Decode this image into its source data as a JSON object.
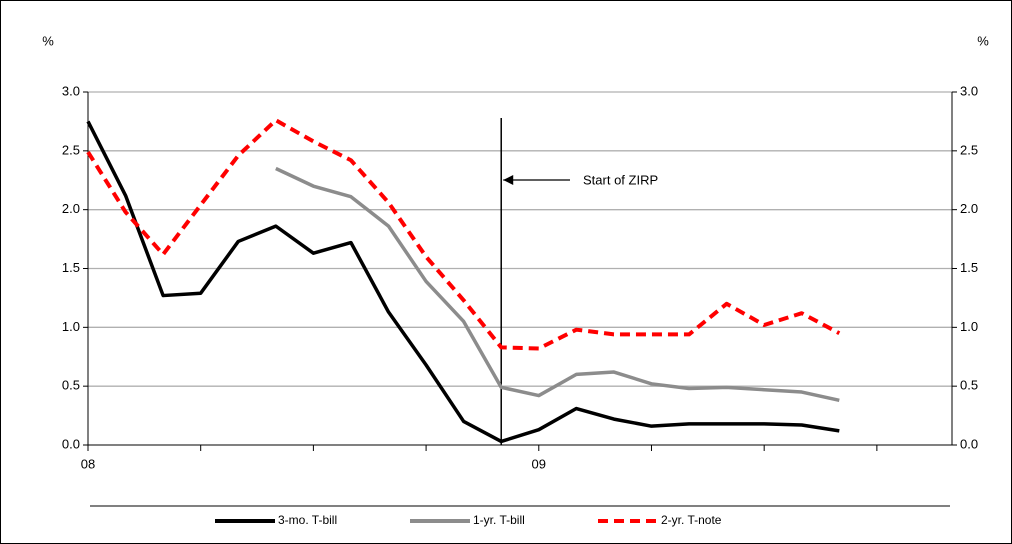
{
  "chart_data": {
    "type": "line",
    "y_label": "%",
    "y2_label": "%",
    "annotation": "Start of ZIRP",
    "categories": [
      "08",
      null,
      null,
      null,
      null,
      null,
      null,
      null,
      null,
      null,
      null,
      null,
      "09",
      null,
      null,
      null,
      null,
      null,
      null,
      null,
      null,
      null,
      null,
      null
    ],
    "series": [
      {
        "name": "3-mo. T-bill",
        "color": "#000000",
        "dash": false,
        "values": [
          2.75,
          2.12,
          1.27,
          1.29,
          1.73,
          1.86,
          1.63,
          1.72,
          1.13,
          0.68,
          0.2,
          0.03,
          0.13,
          0.31,
          0.22,
          0.16,
          0.18,
          0.18,
          0.18,
          0.17,
          0.12,
          null,
          null,
          null
        ]
      },
      {
        "name": "1-yr. T-bill",
        "color": "#8c8c8c",
        "dash": false,
        "values": [
          null,
          null,
          null,
          null,
          null,
          2.35,
          2.2,
          2.11,
          1.86,
          1.39,
          1.05,
          0.49,
          0.42,
          0.6,
          0.62,
          0.52,
          0.48,
          0.49,
          0.47,
          0.45,
          0.38,
          null,
          null,
          null
        ]
      },
      {
        "name": "2-yr. T-note",
        "color": "#ff0000",
        "dash": true,
        "values": [
          2.49,
          1.98,
          1.62,
          2.04,
          2.46,
          2.76,
          2.58,
          2.42,
          2.06,
          1.6,
          1.23,
          0.83,
          0.82,
          0.98,
          0.94,
          0.94,
          0.94,
          1.2,
          1.02,
          1.12,
          0.95,
          null,
          null,
          null
        ]
      }
    ],
    "ylim": [
      0,
      3
    ],
    "yticks": [
      {
        "value": 0,
        "label": "0.0"
      },
      {
        "value": 0.5,
        "label": "0.5"
      },
      {
        "value": 1,
        "label": "1.0"
      },
      {
        "value": 1.5,
        "label": "1.5"
      },
      {
        "value": 2,
        "label": "2.0"
      },
      {
        "value": 2.5,
        "label": "2.5"
      },
      {
        "value": 3,
        "label": "3.0"
      }
    ],
    "y2lim": [
      0,
      3
    ],
    "y2ticks": [
      {
        "value": 0,
        "label": "0.0"
      },
      {
        "value": 0.5,
        "label": "0.5"
      },
      {
        "value": 1,
        "label": "1.0"
      },
      {
        "value": 1.5,
        "label": "1.5"
      },
      {
        "value": 2,
        "label": "2.0"
      },
      {
        "value": 2.5,
        "label": "2.5"
      },
      {
        "value": 3,
        "label": "3.0"
      }
    ],
    "grid": true
  }
}
